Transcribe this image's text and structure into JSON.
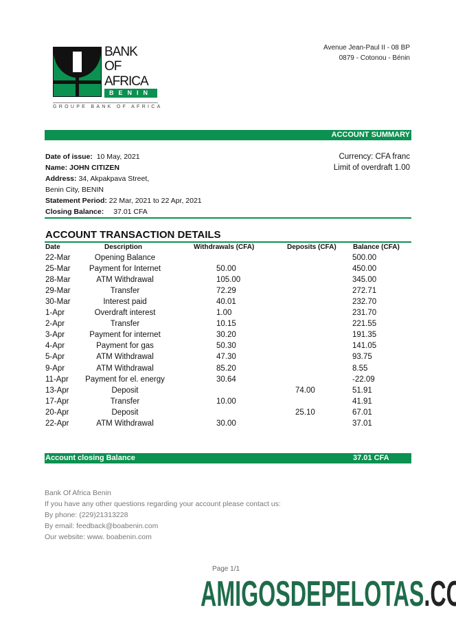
{
  "bank": {
    "logo_lines": [
      "BANK",
      "OF",
      "AFRICA"
    ],
    "logo_country": "BENIN",
    "group": "GROUPE BANK OF AFRICA",
    "address_line1": "Avenue Jean-Paul II - 08 BP",
    "address_line2": "0879 - Cotonou - Bénin",
    "brand_color": "#0b9150"
  },
  "summary": {
    "header": "ACCOUNT SUMMARY",
    "date_label": "Date of issue:",
    "date_value": "10 May, 2021",
    "name_label": "Name:",
    "name_value": "JOHN CITIZEN",
    "address_label": "Address:",
    "address_value": "34, Akpakpava Street,",
    "address_line2": "Benin City, BENIN",
    "period_label": "Statement Period:",
    "period_value": "22 Mar, 2021 to 22 Apr, 2021",
    "closing_label": "Closing Balance:",
    "closing_value": "37.01 CFA",
    "currency": "Currency: CFA franc",
    "overdraft": "Limit of overdraft 1.00"
  },
  "transactions": {
    "title": "ACCOUNT TRANSACTION DETAILS",
    "columns": [
      "Date",
      "Description",
      "Withdrawals (CFA)",
      "Deposits (CFA)",
      "Balance (CFA)"
    ],
    "rows": [
      [
        "22-Mar",
        "Opening Balance",
        "",
        "",
        "500.00"
      ],
      [
        "25-Mar",
        "Payment for Internet",
        "50.00",
        "",
        "450.00"
      ],
      [
        "28-Mar",
        "ATM Withdrawal",
        "105.00",
        "",
        "345.00"
      ],
      [
        "29-Mar",
        "Transfer",
        "72.29",
        "",
        "272.71"
      ],
      [
        "30-Mar",
        "Interest paid",
        "40.01",
        "",
        "232.70"
      ],
      [
        "1-Apr",
        "Overdraft interest",
        "1.00",
        "",
        "231.70"
      ],
      [
        "2-Apr",
        "Transfer",
        "10.15",
        "",
        "221.55"
      ],
      [
        "3-Apr",
        "Payment for internet",
        "30.20",
        "",
        "191.35"
      ],
      [
        "4-Apr",
        "Payment for gas",
        "50.30",
        "",
        "141.05"
      ],
      [
        "5-Apr",
        "ATM Withdrawal",
        "47.30",
        "",
        "93.75"
      ],
      [
        "9-Apr",
        "ATM Withdrawal",
        "85.20",
        "",
        "8.55"
      ],
      [
        "11-Apr",
        "Payment for el. energy",
        "30.64",
        "",
        "-22.09"
      ],
      [
        "13-Apr",
        "Deposit",
        "",
        "74.00",
        "51.91"
      ],
      [
        "17-Apr",
        "Transfer",
        "10.00",
        "",
        "41.91"
      ],
      [
        "20-Apr",
        "Deposit",
        "",
        "25.10",
        "67.01"
      ],
      [
        "22-Apr",
        "ATM Withdrawal",
        "30.00",
        "",
        "37.01"
      ]
    ],
    "closing_label": "Account closing Balance",
    "closing_value": "37.01 CFA"
  },
  "footer": {
    "lines": [
      "Bank Of Africa Benin",
      "If you have any other questions regarding your account please contact us:",
      "By phone: (229)21313228",
      "By email: feedback@boabenin.com",
      "Our website: www. boabenin.com"
    ],
    "page": "Page 1/1"
  },
  "watermark": {
    "main": "AMIGOSDEPELOTAS",
    "suffix": ".COM",
    "main_color": "#1f6b4a",
    "suffix_color": "#222222"
  }
}
